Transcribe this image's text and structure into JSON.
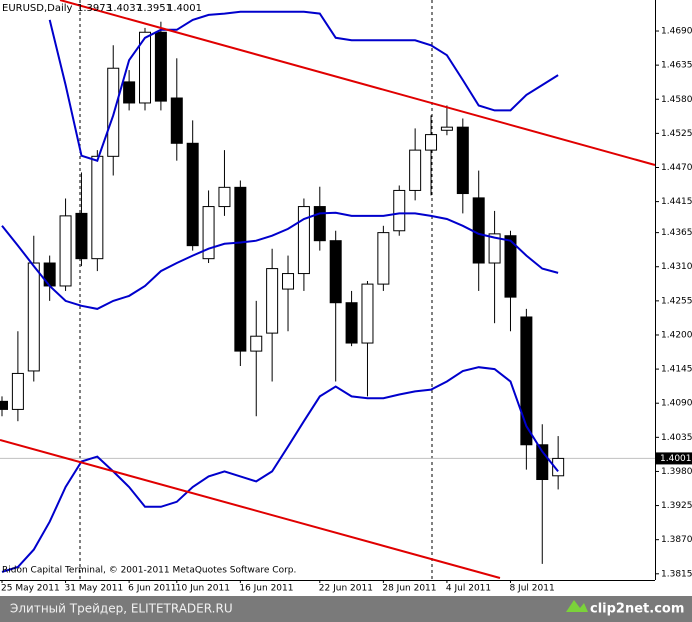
{
  "chart_data": {
    "type": "candlestick",
    "symbol": "EURUSD,Daily",
    "header_ohlc": [
      1.3973,
      1.4037,
      1.3951,
      1.4001
    ],
    "copyright": "Ridon Capital Terminal, © 2001-2011 MetaQuotes Software Corp.",
    "categories": [
      "25 May 2011",
      null,
      null,
      null,
      "31 May 2011",
      null,
      null,
      null,
      "6 Jun 2011",
      null,
      null,
      "10 Jun 2011",
      null,
      null,
      null,
      "16 Jun 2011",
      null,
      null,
      null,
      null,
      "22 Jun 2011",
      null,
      null,
      null,
      "28 Jun 2011",
      null,
      null,
      null,
      "4 Jul 2011",
      null,
      null,
      null,
      "8 Jul 2011",
      null,
      null,
      null
    ],
    "open": [
      1.4093,
      1.408,
      1.4142,
      1.4316,
      1.4279,
      1.4396,
      1.4323,
      1.4488,
      1.4608,
      1.4574,
      1.4688,
      1.4582,
      1.4509,
      1.4323,
      1.4407,
      1.4438,
      1.4174,
      1.4203,
      1.4274,
      1.4299,
      1.4407,
      1.4352,
      1.4252,
      1.4187,
      1.4282,
      1.4368,
      1.4433,
      1.4498,
      1.453,
      1.4535,
      1.4421,
      1.4316,
      1.436,
      1.4229,
      1.4023,
      1.3973
    ],
    "high": [
      1.4101,
      1.4206,
      1.436,
      1.4328,
      1.442,
      1.4462,
      1.4498,
      1.4667,
      1.4627,
      1.4695,
      1.4705,
      1.4646,
      1.4546,
      1.4433,
      1.4498,
      1.4449,
      1.4255,
      1.4339,
      1.4328,
      1.442,
      1.4439,
      1.4368,
      1.4271,
      1.4287,
      1.4376,
      1.4441,
      1.4533,
      1.4554,
      1.457,
      1.4549,
      1.4465,
      1.44,
      1.4368,
      1.4242,
      1.4056,
      1.4037
    ],
    "low": [
      1.4069,
      1.4061,
      1.4125,
      1.4255,
      1.4271,
      1.4311,
      1.4303,
      1.4457,
      1.4562,
      1.4562,
      1.4562,
      1.4481,
      1.4336,
      1.4316,
      1.4392,
      1.415,
      1.4069,
      1.4125,
      1.4206,
      1.4271,
      1.4336,
      1.4125,
      1.4182,
      1.4101,
      1.4271,
      1.436,
      1.4417,
      1.4425,
      1.4522,
      1.4396,
      1.4271,
      1.4219,
      1.4206,
      1.3983,
      1.3831,
      1.3951
    ],
    "close": [
      1.408,
      1.4138,
      1.4316,
      1.4279,
      1.4392,
      1.4323,
      1.4488,
      1.463,
      1.4574,
      1.4688,
      1.4577,
      1.4509,
      1.4344,
      1.4407,
      1.4438,
      1.4174,
      1.4198,
      1.4307,
      1.4299,
      1.4407,
      1.4352,
      1.4252,
      1.4187,
      1.4282,
      1.4365,
      1.4433,
      1.4498,
      1.4523,
      1.4535,
      1.4428,
      1.4316,
      1.4363,
      1.4261,
      1.4023,
      1.3967,
      1.4001
    ],
    "up_color": "#ffffff",
    "down_color": "#000000",
    "lines": [
      {
        "color": "#0000cc",
        "values": [
          null,
          null,
          null,
          1.4708,
          1.4603,
          1.4489,
          1.4481,
          1.4554,
          1.4643,
          1.4679,
          1.4692,
          1.4692,
          1.4708,
          1.4716,
          1.4718,
          1.4721,
          1.4721,
          1.4721,
          1.4721,
          1.4721,
          1.4718,
          1.4679,
          1.4675,
          1.4675,
          1.4675,
          1.4675,
          1.4675,
          1.4667,
          1.4651,
          1.4611,
          1.457,
          1.4562,
          1.4562,
          1.4587,
          1.4603,
          1.4619
        ]
      },
      {
        "color": "#0000cc",
        "values": [
          1.4376,
          1.4344,
          1.4311,
          1.4279,
          1.4255,
          1.4247,
          1.4242,
          1.4255,
          1.4263,
          1.4279,
          1.4303,
          1.4316,
          1.4328,
          1.4339,
          1.4347,
          1.4349,
          1.4352,
          1.436,
          1.4371,
          1.4387,
          1.4396,
          1.4397,
          1.4392,
          1.4392,
          1.4392,
          1.4396,
          1.4396,
          1.4392,
          1.4387,
          1.4376,
          1.4363,
          1.4357,
          1.4352,
          1.4328,
          1.4307,
          1.43
        ]
      },
      {
        "color": "#0000cc",
        "values": [
          1.3818,
          1.3826,
          1.3854,
          1.3899,
          1.3955,
          1.3996,
          1.4004,
          1.398,
          1.3955,
          1.3923,
          1.3923,
          1.3931,
          1.3955,
          1.3972,
          1.398,
          1.3972,
          1.3964,
          1.398,
          1.402,
          1.4061,
          1.4101,
          1.4117,
          1.4101,
          1.4098,
          1.4098,
          1.4104,
          1.4109,
          1.4112,
          1.4125,
          1.4142,
          1.4148,
          1.4145,
          1.4125,
          1.4053,
          1.4012,
          1.398
        ]
      }
    ],
    "current_price": 1.4001,
    "ylim": [
      1.3805,
      1.474
    ],
    "yticks": [
      {
        "value": 1.469,
        "label": "1.4690"
      },
      1.4635,
      {
        "value": 1.458,
        "label": "1.4580"
      },
      1.4525,
      {
        "value": 1.447,
        "label": "1.4470"
      },
      1.4415,
      1.4365,
      {
        "value": 1.431,
        "label": "1.4310"
      },
      1.4255,
      {
        "value": 1.42,
        "label": "1.4200"
      },
      1.4145,
      {
        "value": 1.409,
        "label": "1.4090"
      },
      1.4035,
      {
        "value": 1.398,
        "label": "1.3980"
      },
      1.3925,
      {
        "value": 1.387,
        "label": "1.3870"
      },
      1.3815
    ]
  },
  "footer": {
    "left": "Элитный Трейдер, ELITETRADER.RU",
    "right": "clip2net.com"
  }
}
